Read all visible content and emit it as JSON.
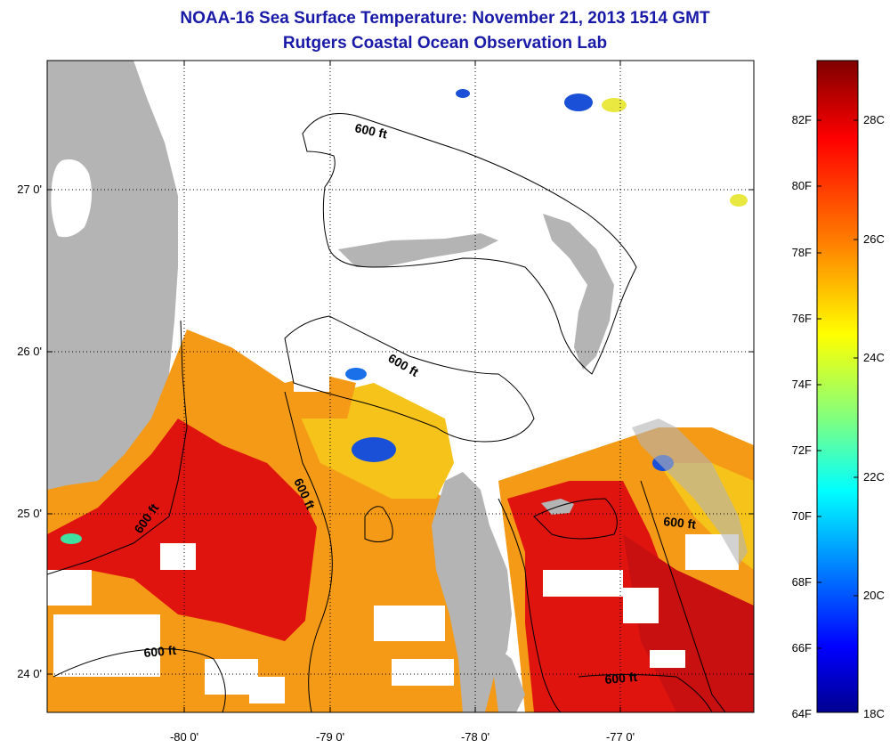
{
  "title": {
    "line1": "NOAA-16 Sea Surface Temperature:  November 21, 2013 1514 GMT",
    "line2": "Rutgers Coastal Ocean Observation Lab"
  },
  "map": {
    "lon_ticks": [
      "-80 0'",
      "-79 0'",
      "-78 0'",
      "-77 0'"
    ],
    "lat_ticks": [
      "27 0'",
      "26 0'",
      "25 0'",
      "24 0'"
    ],
    "contour_label": "600 ft",
    "colors": {
      "land": "#b4b4b4",
      "cloud_nodata": "#ffffff",
      "warm": "#e0140f",
      "mid": "#f59a16",
      "cool": "#f6c31a",
      "cold": "#1a50d8"
    }
  },
  "colorbar": {
    "fahrenheit_labels": [
      "82F",
      "80F",
      "78F",
      "76F",
      "74F",
      "72F",
      "70F",
      "68F",
      "66F",
      "64F"
    ],
    "celsius_labels": [
      "28C",
      "26C",
      "24C",
      "22C",
      "20C",
      "18C"
    ],
    "stops": [
      "#7f0000",
      "#ff0000",
      "#ff8000",
      "#ffff00",
      "#80ff80",
      "#00ffff",
      "#0080ff",
      "#0000ff",
      "#00008f"
    ]
  }
}
